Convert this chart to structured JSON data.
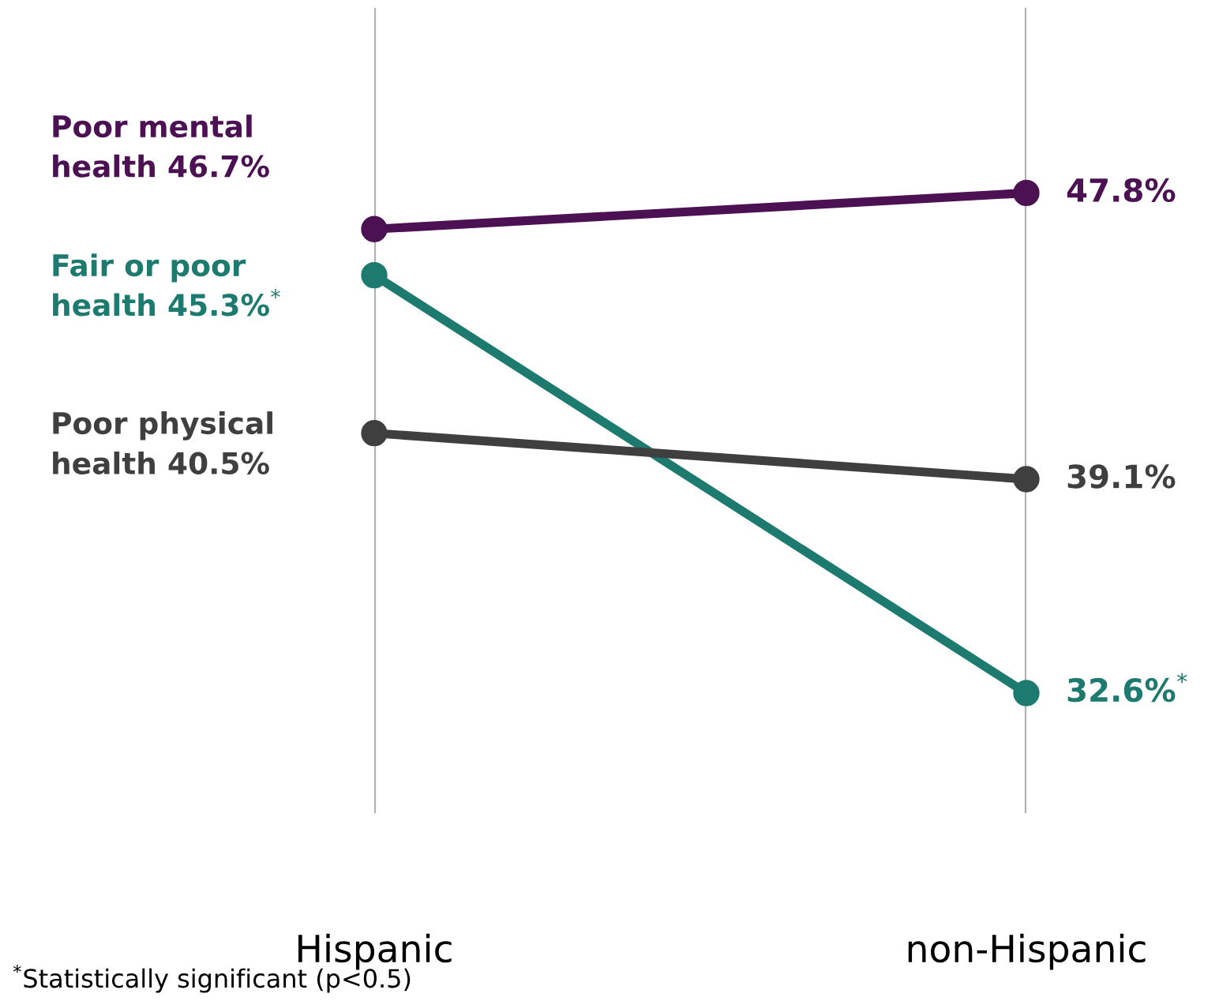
{
  "chart_data": {
    "type": "line",
    "categories": [
      "Hispanic",
      "non-Hispanic"
    ],
    "series": [
      {
        "name": "Poor mental health",
        "color": "#4b1153",
        "values": [
          46.7,
          47.8
        ],
        "value_labels": [
          "46.7%",
          "47.8%"
        ]
      },
      {
        "name": "Fair or poor health",
        "color": "#1c7a6e",
        "values": [
          45.3,
          32.6
        ],
        "value_labels": [
          "45.3%$^{*}$",
          "32.6%$^{*}$"
        ]
      },
      {
        "name": "Poor physical health",
        "color": "#3f3f3f",
        "values": [
          40.5,
          39.1
        ],
        "value_labels": [
          "40.5%",
          "39.1%"
        ]
      }
    ],
    "marker": "circle",
    "grid": "x",
    "tick_labels": "x",
    "annotations": [
      "$^{*}$Statistically significant (p<0.5)"
    ]
  }
}
